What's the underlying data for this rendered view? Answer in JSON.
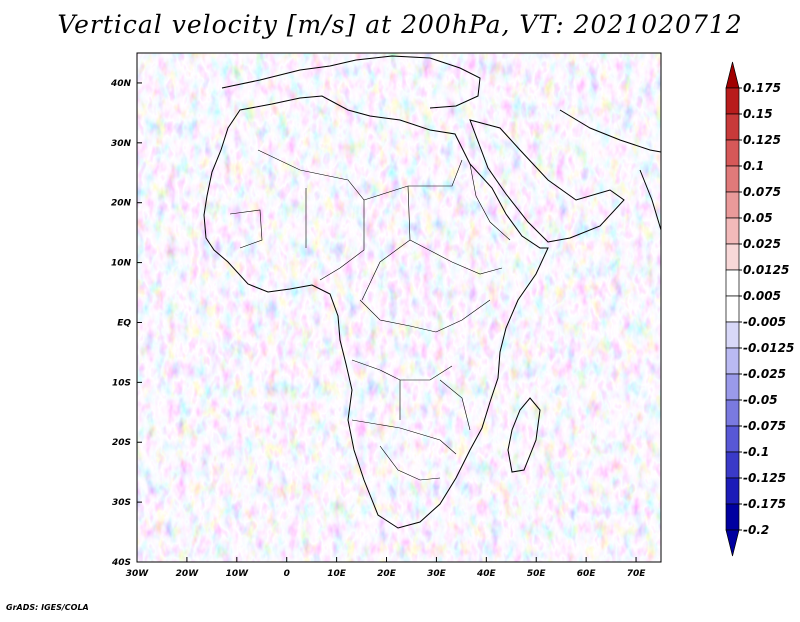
{
  "title": "Vertical velocity [m/s] at 200hPa, VT: 2021020712",
  "credit": "GrADS: IGES/COLA",
  "map": {
    "lon_range": [
      -30,
      75
    ],
    "lat_range": [
      -40,
      45
    ],
    "lon_ticks": [
      "30W",
      "20W",
      "10W",
      "0",
      "10E",
      "20E",
      "30E",
      "40E",
      "50E",
      "60E",
      "70E"
    ],
    "lat_ticks": [
      "40N",
      "30N",
      "20N",
      "10N",
      "EQ",
      "10S",
      "20S",
      "30S",
      "40S"
    ]
  },
  "colorbar": {
    "labels": [
      "0.175",
      "0.15",
      "0.125",
      "0.1",
      "0.075",
      "0.05",
      "0.025",
      "0.0125",
      "0.005",
      "-0.005",
      "-0.0125",
      "-0.025",
      "-0.05",
      "-0.075",
      "-0.1",
      "-0.125",
      "-0.175",
      "-0.2"
    ],
    "colors": [
      "#a00000",
      "#b81c1c",
      "#c83a3a",
      "#d65858",
      "#e07a7a",
      "#ea9a9a",
      "#f2baba",
      "#f8d8d8",
      "#ffffff",
      "#ffffff",
      "#d8d8f8",
      "#babaf2",
      "#9a9aea",
      "#7a7ae0",
      "#5858d6",
      "#3a3ac8",
      "#1c1cb8",
      "#0000a0"
    ]
  }
}
